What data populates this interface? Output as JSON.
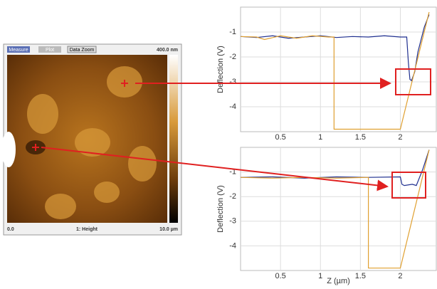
{
  "image_panel": {
    "buttons": [
      "Measure",
      "Plot",
      "Data Zoom"
    ],
    "scale_max": "400.0 nm",
    "x_start": "0.0",
    "channel": "1: Height",
    "x_end": "10.0 µm"
  },
  "chart_data": [
    {
      "type": "line",
      "ylabel": "Deflection (V)",
      "xlim": [
        0,
        2.45
      ],
      "ylim": [
        -5,
        0
      ],
      "xticks": [
        0.5,
        1,
        1.5,
        2
      ],
      "yticks": [
        -1,
        -2,
        -3,
        -4
      ],
      "grid": true,
      "series": [
        {
          "color": "#1f2f8f",
          "x": [
            0,
            0.2,
            0.4,
            0.6,
            0.8,
            1.0,
            1.2,
            1.4,
            1.6,
            1.8,
            2.0,
            2.08,
            2.1,
            2.12,
            2.14,
            2.18,
            2.22,
            2.3,
            2.36
          ],
          "values": [
            -1.18,
            -1.22,
            -1.15,
            -1.25,
            -1.2,
            -1.15,
            -1.22,
            -1.18,
            -1.2,
            -1.15,
            -1.2,
            -1.2,
            -2.2,
            -2.9,
            -2.95,
            -2.6,
            -1.8,
            -0.8,
            -0.3
          ]
        },
        {
          "color": "#e0a030",
          "x": [
            0,
            0.2,
            0.3,
            0.5,
            0.7,
            0.9,
            1.1,
            1.17,
            1.17,
            2.0,
            2.36
          ],
          "values": [
            -1.18,
            -1.2,
            -1.3,
            -1.15,
            -1.25,
            -1.15,
            -1.2,
            -1.2,
            -4.9,
            -4.9,
            -0.2
          ]
        }
      ]
    },
    {
      "type": "line",
      "ylabel": "Deflection (V)",
      "xlabel": "Z (µm)",
      "xlim": [
        0,
        2.45
      ],
      "ylim": [
        -5,
        0
      ],
      "xticks": [
        0.5,
        1,
        1.5,
        2
      ],
      "yticks": [
        -1,
        -2,
        -3,
        -4
      ],
      "grid": true,
      "series": [
        {
          "color": "#1f2f8f",
          "x": [
            0,
            0.4,
            0.8,
            1.2,
            1.6,
            2.0,
            2.02,
            2.05,
            2.15,
            2.2,
            2.28,
            2.36
          ],
          "values": [
            -1.22,
            -1.2,
            -1.25,
            -1.2,
            -1.22,
            -1.2,
            -1.5,
            -1.55,
            -1.5,
            -1.55,
            -0.9,
            -0.1
          ]
        },
        {
          "color": "#e0a030",
          "x": [
            0,
            0.4,
            0.8,
            1.2,
            1.58,
            1.6,
            1.6,
            2.0,
            2.36
          ],
          "values": [
            -1.22,
            -1.25,
            -1.22,
            -1.25,
            -1.22,
            -1.22,
            -4.9,
            -4.9,
            -0.1
          ]
        }
      ]
    }
  ]
}
